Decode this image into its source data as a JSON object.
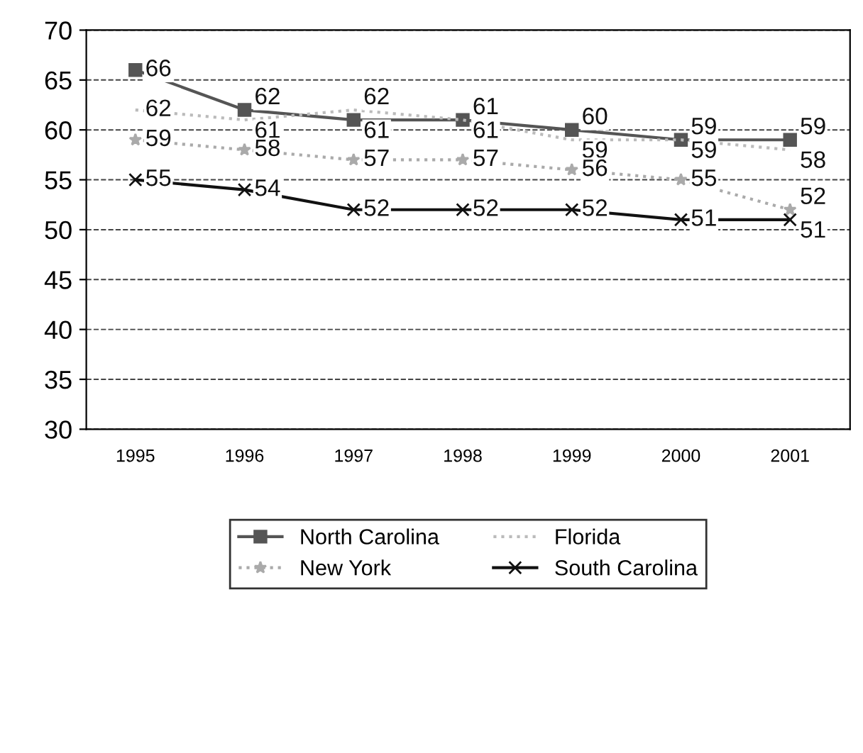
{
  "chart_data": {
    "type": "line",
    "categories": [
      "1995",
      "1996",
      "1997",
      "1998",
      "1999",
      "2000",
      "2001"
    ],
    "series": [
      {
        "name": "North Carolina",
        "color": "#555555",
        "marker": "square",
        "line_style": "solid",
        "values": [
          66,
          62,
          61,
          61,
          60,
          59,
          59
        ]
      },
      {
        "name": "Florida",
        "color": "#bbbbbb",
        "marker": "none",
        "line_style": "dotted",
        "values": [
          62,
          61,
          62,
          61,
          59,
          59,
          58
        ]
      },
      {
        "name": "New York",
        "color": "#aaaaaa",
        "marker": "star",
        "line_style": "dotted",
        "values": [
          59,
          58,
          57,
          57,
          56,
          55,
          52
        ]
      },
      {
        "name": "South Carolina",
        "color": "#111111",
        "marker": "cross",
        "line_style": "solid",
        "values": [
          55,
          54,
          52,
          52,
          52,
          51,
          51
        ]
      }
    ],
    "ylim": [
      30,
      70
    ],
    "yticks": [
      30,
      35,
      40,
      45,
      50,
      55,
      60,
      65,
      70
    ],
    "grid": "y",
    "legend": "bottom",
    "data_labels": true
  }
}
